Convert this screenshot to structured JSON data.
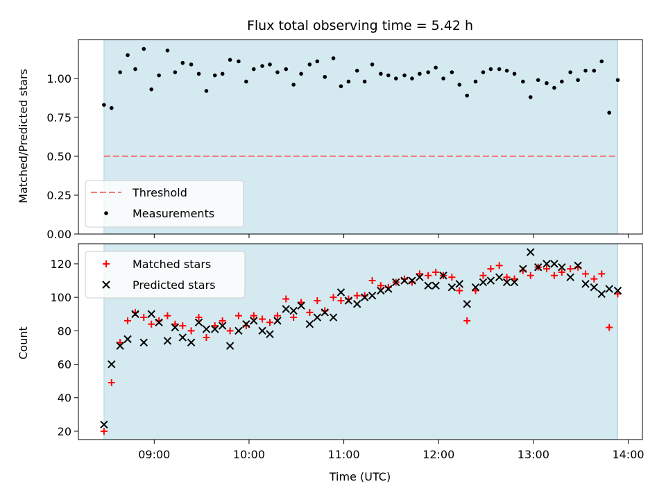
{
  "colors": {
    "shade": "#d4eaf0",
    "threshold": "#f07b7b",
    "matched": "#ff0000",
    "predicted": "#000000",
    "measurement": "#000000"
  },
  "chart_data": [
    {
      "type": "scatter",
      "title": "Flux total observing time = 5.42 h",
      "xlabel": "",
      "ylabel": "Matched/Predicted stars",
      "ylim": [
        0,
        1.25
      ],
      "yticks": [
        "0.00",
        "0.25",
        "0.50",
        "0.75",
        "1.00"
      ],
      "ytick_values": [
        0,
        0.25,
        0.5,
        0.75,
        1.0
      ],
      "shaded_span_hours": [
        8.47,
        13.89
      ],
      "threshold": {
        "name": "Threshold",
        "value": 0.5
      },
      "legend_location": "lower-left",
      "series": [
        {
          "name": "Measurements",
          "x_hours": [
            8.47,
            8.55,
            8.64,
            8.72,
            8.8,
            8.89,
            8.97,
            9.05,
            9.14,
            9.22,
            9.3,
            9.39,
            9.47,
            9.55,
            9.64,
            9.72,
            9.8,
            9.89,
            9.97,
            10.05,
            10.14,
            10.22,
            10.3,
            10.39,
            10.47,
            10.55,
            10.64,
            10.72,
            10.8,
            10.89,
            10.97,
            11.05,
            11.14,
            11.22,
            11.3,
            11.39,
            11.47,
            11.55,
            11.64,
            11.72,
            11.8,
            11.89,
            11.97,
            12.05,
            12.14,
            12.22,
            12.3,
            12.39,
            12.47,
            12.55,
            12.64,
            12.72,
            12.8,
            12.89,
            12.97,
            13.05,
            13.14,
            13.22,
            13.3,
            13.39,
            13.47,
            13.55,
            13.64,
            13.72,
            13.8,
            13.89
          ],
          "y": [
            0.83,
            0.81,
            1.04,
            1.15,
            1.06,
            1.19,
            0.93,
            1.02,
            1.18,
            1.04,
            1.1,
            1.09,
            1.03,
            0.92,
            1.02,
            1.03,
            1.12,
            1.11,
            0.98,
            1.06,
            1.08,
            1.09,
            1.04,
            1.06,
            0.96,
            1.03,
            1.09,
            1.11,
            1.01,
            1.13,
            0.95,
            0.98,
            1.05,
            0.98,
            1.09,
            1.03,
            1.02,
            1.0,
            1.02,
            1.0,
            1.03,
            1.04,
            1.07,
            1.0,
            1.04,
            0.96,
            0.89,
            0.98,
            1.04,
            1.06,
            1.06,
            1.05,
            1.03,
            0.98,
            0.88,
            0.99,
            0.97,
            0.94,
            0.98,
            1.04,
            0.99,
            1.05,
            1.05,
            1.11,
            0.78,
            0.99
          ]
        }
      ]
    },
    {
      "type": "scatter",
      "title": "",
      "xlabel": "Time (UTC)",
      "ylabel": "Count",
      "ylim": [
        15,
        132
      ],
      "yticks": [
        "20",
        "40",
        "60",
        "80",
        "100",
        "120"
      ],
      "ytick_values": [
        20,
        40,
        60,
        80,
        100,
        120
      ],
      "x_range_hours": [
        8.2,
        14.15
      ],
      "xticks": [
        "09:00",
        "10:00",
        "11:00",
        "12:00",
        "13:00",
        "14:00"
      ],
      "xtick_values": [
        9,
        10,
        11,
        12,
        13,
        14
      ],
      "shaded_span_hours": [
        8.47,
        13.89
      ],
      "legend_location": "upper-left",
      "series": [
        {
          "name": "Matched stars",
          "marker": "plus",
          "x_hours": [
            8.47,
            8.55,
            8.64,
            8.72,
            8.8,
            8.89,
            8.97,
            9.05,
            9.14,
            9.22,
            9.3,
            9.39,
            9.47,
            9.55,
            9.64,
            9.72,
            9.8,
            9.89,
            9.97,
            10.05,
            10.14,
            10.22,
            10.3,
            10.39,
            10.47,
            10.55,
            10.64,
            10.72,
            10.8,
            10.89,
            10.97,
            11.05,
            11.14,
            11.22,
            11.3,
            11.39,
            11.47,
            11.55,
            11.64,
            11.72,
            11.8,
            11.89,
            11.97,
            12.05,
            12.14,
            12.22,
            12.3,
            12.39,
            12.47,
            12.55,
            12.64,
            12.72,
            12.8,
            12.89,
            12.97,
            13.05,
            13.14,
            13.22,
            13.3,
            13.39,
            13.47,
            13.55,
            13.64,
            13.72,
            13.8,
            13.89
          ],
          "y": [
            20,
            49,
            73,
            86,
            91,
            88,
            84,
            86,
            89,
            84,
            83,
            80,
            88,
            76,
            83,
            86,
            80,
            89,
            83,
            89,
            87,
            85,
            89,
            99,
            88,
            97,
            91,
            98,
            92,
            100,
            98,
            99,
            101,
            101,
            110,
            107,
            106,
            109,
            111,
            109,
            114,
            113,
            115,
            113,
            112,
            104,
            86,
            104,
            113,
            117,
            119,
            112,
            111,
            116,
            113,
            118,
            117,
            113,
            115,
            117,
            118,
            114,
            111,
            114,
            82,
            102
          ]
        },
        {
          "name": "Predicted stars",
          "marker": "x",
          "x_hours": [
            8.47,
            8.55,
            8.64,
            8.72,
            8.8,
            8.89,
            8.97,
            9.05,
            9.14,
            9.22,
            9.3,
            9.39,
            9.47,
            9.55,
            9.64,
            9.72,
            9.8,
            9.89,
            9.97,
            10.05,
            10.14,
            10.22,
            10.3,
            10.39,
            10.47,
            10.55,
            10.64,
            10.72,
            10.8,
            10.89,
            10.97,
            11.05,
            11.14,
            11.22,
            11.3,
            11.39,
            11.47,
            11.55,
            11.64,
            11.72,
            11.8,
            11.89,
            11.97,
            12.05,
            12.14,
            12.22,
            12.3,
            12.39,
            12.47,
            12.55,
            12.64,
            12.72,
            12.8,
            12.89,
            12.97,
            13.05,
            13.14,
            13.22,
            13.3,
            13.39,
            13.47,
            13.55,
            13.64,
            13.72,
            13.8,
            13.89
          ],
          "y": [
            24,
            60,
            71,
            75,
            90,
            73,
            90,
            85,
            74,
            82,
            76,
            73,
            85,
            81,
            81,
            83,
            71,
            80,
            84,
            86,
            80,
            78,
            86,
            93,
            92,
            95,
            84,
            88,
            91,
            88,
            103,
            98,
            96,
            100,
            101,
            104,
            105,
            109,
            110,
            110,
            112,
            107,
            107,
            113,
            106,
            108,
            96,
            106,
            109,
            110,
            112,
            109,
            109,
            117,
            127,
            118,
            120,
            120,
            118,
            112,
            119,
            108,
            106,
            102,
            105,
            104
          ]
        }
      ]
    }
  ]
}
